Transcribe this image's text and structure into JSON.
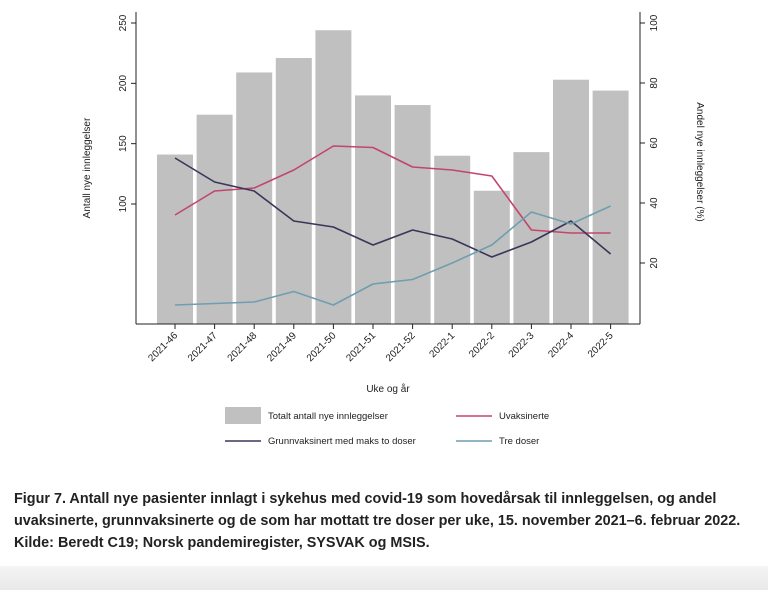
{
  "chart_data": {
    "type": "bar+line",
    "categories": [
      "2021-46",
      "2021-47",
      "2021-48",
      "2021-49",
      "2021-50",
      "2021-51",
      "2021-52",
      "2022-1",
      "2022-2",
      "2022-3",
      "2022-4",
      "2022-5"
    ],
    "xlabel": "Uke og år",
    "ylabel_left": "Antall nye innleggelser",
    "ylabel_right": "Andel nye innleggelser (%)",
    "yticks_left": [
      100,
      150,
      200,
      250
    ],
    "yticks_right": [
      20,
      40,
      60,
      80,
      100
    ],
    "ylim_left": [
      0,
      250
    ],
    "ylim_right": [
      0,
      100
    ],
    "grid": false,
    "legend_position": "bottom",
    "bars": {
      "name": "Totalt antall nye innleggelser",
      "color": "#c0c0c0",
      "values": [
        141,
        174,
        209,
        221,
        244,
        190,
        182,
        140,
        111,
        143,
        203,
        194
      ]
    },
    "series": [
      {
        "name": "Uvaksinerte",
        "color": "#c2456e",
        "axis": "right",
        "values": [
          36,
          44,
          45,
          51,
          59,
          58.5,
          52,
          51,
          49,
          31,
          30,
          30
        ]
      },
      {
        "name": "Grunnvaksinert med maks to doser",
        "color": "#3b3558",
        "axis": "right",
        "values": [
          55,
          47,
          44,
          34,
          32,
          26,
          31,
          28,
          22,
          27,
          34,
          23
        ]
      },
      {
        "name": "Tre doser",
        "color": "#6e9eb0",
        "axis": "right",
        "values": [
          6,
          6.5,
          7,
          10.5,
          6,
          13,
          14.5,
          20,
          26,
          37,
          33,
          39
        ]
      }
    ]
  },
  "caption": "Figur 7. Antall nye pasienter innlagt i sykehus med covid-19 som hovedårsak til innleggelsen, og andel uvaksinerte, grunnvaksinerte og de som har mottatt tre doser per uke, 15. november 2021–6. februar 2022. Kilde: Beredt C19; Norsk pandemiregister, SYSVAK og MSIS."
}
